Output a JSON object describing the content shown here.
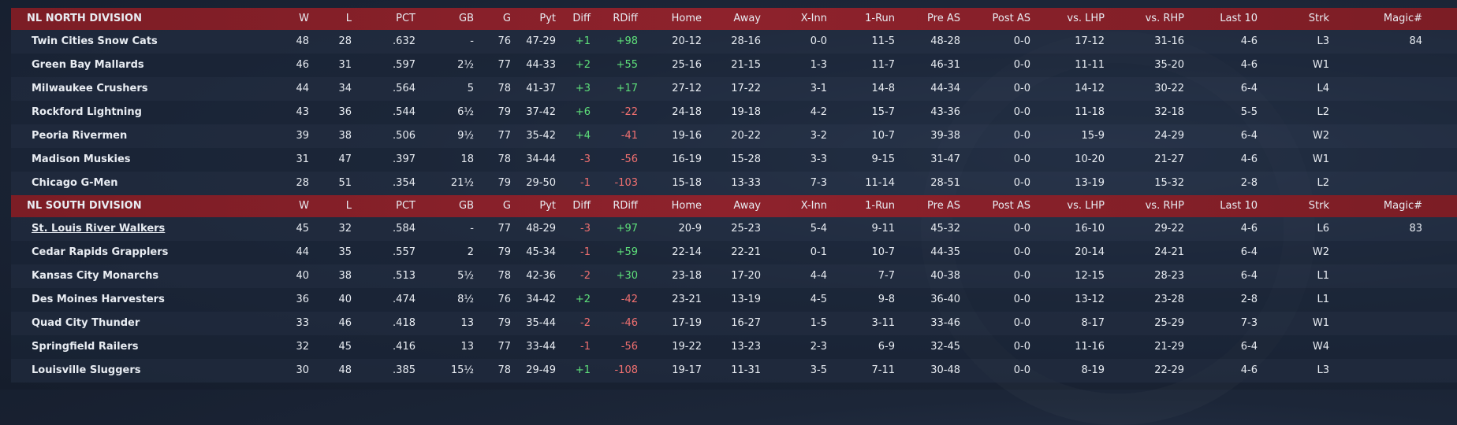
{
  "columns": [
    "W",
    "L",
    "PCT",
    "GB",
    "G",
    "Pyt",
    "Diff",
    "RDiff",
    "Home",
    "Away",
    "X-Inn",
    "1-Run",
    "Pre AS",
    "Post AS",
    "vs. LHP",
    "vs. RHP",
    "Last 10",
    "Strk",
    "Magic#"
  ],
  "colors": {
    "header_bg": "#8e222c",
    "positive": "#5ee07a",
    "negative": "#f07070"
  },
  "divisions": [
    {
      "title": "NL NORTH DIVISION",
      "teams": [
        {
          "name": "Twin Cities Snow Cats",
          "W": "48",
          "L": "28",
          "PCT": ".632",
          "GB": "-",
          "G": "76",
          "Pyt": "47-29",
          "Diff": "+1",
          "RDiff": "+98",
          "Home": "20-12",
          "Away": "28-16",
          "XInn": "0-0",
          "OneRun": "11-5",
          "PreAS": "48-28",
          "PostAS": "0-0",
          "LHP": "17-12",
          "RHP": "31-16",
          "Last10": "4-6",
          "Strk": "L3",
          "Magic": "84"
        },
        {
          "name": "Green Bay  Mallards",
          "W": "46",
          "L": "31",
          "PCT": ".597",
          "GB": "2½",
          "G": "77",
          "Pyt": "44-33",
          "Diff": "+2",
          "RDiff": "+55",
          "Home": "25-16",
          "Away": "21-15",
          "XInn": "1-3",
          "OneRun": "11-7",
          "PreAS": "46-31",
          "PostAS": "0-0",
          "LHP": "11-11",
          "RHP": "35-20",
          "Last10": "4-6",
          "Strk": "W1",
          "Magic": ""
        },
        {
          "name": "Milwaukee Crushers",
          "W": "44",
          "L": "34",
          "PCT": ".564",
          "GB": "5",
          "G": "78",
          "Pyt": "41-37",
          "Diff": "+3",
          "RDiff": "+17",
          "Home": "27-12",
          "Away": "17-22",
          "XInn": "3-1",
          "OneRun": "14-8",
          "PreAS": "44-34",
          "PostAS": "0-0",
          "LHP": "14-12",
          "RHP": "30-22",
          "Last10": "6-4",
          "Strk": "L4",
          "Magic": ""
        },
        {
          "name": "Rockford Lightning",
          "W": "43",
          "L": "36",
          "PCT": ".544",
          "GB": "6½",
          "G": "79",
          "Pyt": "37-42",
          "Diff": "+6",
          "RDiff": "-22",
          "Home": "24-18",
          "Away": "19-18",
          "XInn": "4-2",
          "OneRun": "15-7",
          "PreAS": "43-36",
          "PostAS": "0-0",
          "LHP": "11-18",
          "RHP": "32-18",
          "Last10": "5-5",
          "Strk": "L2",
          "Magic": ""
        },
        {
          "name": "Peoria Rivermen",
          "W": "39",
          "L": "38",
          "PCT": ".506",
          "GB": "9½",
          "G": "77",
          "Pyt": "35-42",
          "Diff": "+4",
          "RDiff": "-41",
          "Home": "19-16",
          "Away": "20-22",
          "XInn": "3-2",
          "OneRun": "10-7",
          "PreAS": "39-38",
          "PostAS": "0-0",
          "LHP": "15-9",
          "RHP": "24-29",
          "Last10": "6-4",
          "Strk": "W2",
          "Magic": ""
        },
        {
          "name": "Madison Muskies",
          "W": "31",
          "L": "47",
          "PCT": ".397",
          "GB": "18",
          "G": "78",
          "Pyt": "34-44",
          "Diff": "-3",
          "RDiff": "-56",
          "Home": "16-19",
          "Away": "15-28",
          "XInn": "3-3",
          "OneRun": "9-15",
          "PreAS": "31-47",
          "PostAS": "0-0",
          "LHP": "10-20",
          "RHP": "21-27",
          "Last10": "4-6",
          "Strk": "W1",
          "Magic": ""
        },
        {
          "name": "Chicago G-Men",
          "W": "28",
          "L": "51",
          "PCT": ".354",
          "GB": "21½",
          "G": "79",
          "Pyt": "29-50",
          "Diff": "-1",
          "RDiff": "-103",
          "Home": "15-18",
          "Away": "13-33",
          "XInn": "7-3",
          "OneRun": "11-14",
          "PreAS": "28-51",
          "PostAS": "0-0",
          "LHP": "13-19",
          "RHP": "15-32",
          "Last10": "2-8",
          "Strk": "L2",
          "Magic": ""
        }
      ]
    },
    {
      "title": "NL SOUTH DIVISION",
      "teams": [
        {
          "name": "St. Louis River Walkers",
          "W": "45",
          "L": "32",
          "PCT": ".584",
          "GB": "-",
          "G": "77",
          "Pyt": "48-29",
          "Diff": "-3",
          "RDiff": "+97",
          "Home": "20-9",
          "Away": "25-23",
          "XInn": "5-4",
          "OneRun": "9-11",
          "PreAS": "45-32",
          "PostAS": "0-0",
          "LHP": "16-10",
          "RHP": "29-22",
          "Last10": "4-6",
          "Strk": "L6",
          "Magic": "83"
        },
        {
          "name": "Cedar Rapids Grapplers",
          "W": "44",
          "L": "35",
          "PCT": ".557",
          "GB": "2",
          "G": "79",
          "Pyt": "45-34",
          "Diff": "-1",
          "RDiff": "+59",
          "Home": "22-14",
          "Away": "22-21",
          "XInn": "0-1",
          "OneRun": "10-7",
          "PreAS": "44-35",
          "PostAS": "0-0",
          "LHP": "20-14",
          "RHP": "24-21",
          "Last10": "6-4",
          "Strk": "W2",
          "Magic": ""
        },
        {
          "name": "Kansas City Monarchs",
          "W": "40",
          "L": "38",
          "PCT": ".513",
          "GB": "5½",
          "G": "78",
          "Pyt": "42-36",
          "Diff": "-2",
          "RDiff": "+30",
          "Home": "23-18",
          "Away": "17-20",
          "XInn": "4-4",
          "OneRun": "7-7",
          "PreAS": "40-38",
          "PostAS": "0-0",
          "LHP": "12-15",
          "RHP": "28-23",
          "Last10": "6-4",
          "Strk": "L1",
          "Magic": ""
        },
        {
          "name": "Des Moines Harvesters",
          "W": "36",
          "L": "40",
          "PCT": ".474",
          "GB": "8½",
          "G": "76",
          "Pyt": "34-42",
          "Diff": "+2",
          "RDiff": "-42",
          "Home": "23-21",
          "Away": "13-19",
          "XInn": "4-5",
          "OneRun": "9-8",
          "PreAS": "36-40",
          "PostAS": "0-0",
          "LHP": "13-12",
          "RHP": "23-28",
          "Last10": "2-8",
          "Strk": "L1",
          "Magic": ""
        },
        {
          "name": "Quad City Thunder",
          "W": "33",
          "L": "46",
          "PCT": ".418",
          "GB": "13",
          "G": "79",
          "Pyt": "35-44",
          "Diff": "-2",
          "RDiff": "-46",
          "Home": "17-19",
          "Away": "16-27",
          "XInn": "1-5",
          "OneRun": "3-11",
          "PreAS": "33-46",
          "PostAS": "0-0",
          "LHP": "8-17",
          "RHP": "25-29",
          "Last10": "7-3",
          "Strk": "W1",
          "Magic": ""
        },
        {
          "name": "Springfield Railers",
          "W": "32",
          "L": "45",
          "PCT": ".416",
          "GB": "13",
          "G": "77",
          "Pyt": "33-44",
          "Diff": "-1",
          "RDiff": "-56",
          "Home": "19-22",
          "Away": "13-23",
          "XInn": "2-3",
          "OneRun": "6-9",
          "PreAS": "32-45",
          "PostAS": "0-0",
          "LHP": "11-16",
          "RHP": "21-29",
          "Last10": "6-4",
          "Strk": "W4",
          "Magic": ""
        },
        {
          "name": "Louisville Sluggers",
          "W": "30",
          "L": "48",
          "PCT": ".385",
          "GB": "15½",
          "G": "78",
          "Pyt": "29-49",
          "Diff": "+1",
          "RDiff": "-108",
          "Home": "19-17",
          "Away": "11-31",
          "XInn": "3-5",
          "OneRun": "7-11",
          "PreAS": "30-48",
          "PostAS": "0-0",
          "LHP": "8-19",
          "RHP": "22-29",
          "Last10": "4-6",
          "Strk": "L3",
          "Magic": ""
        }
      ]
    }
  ]
}
